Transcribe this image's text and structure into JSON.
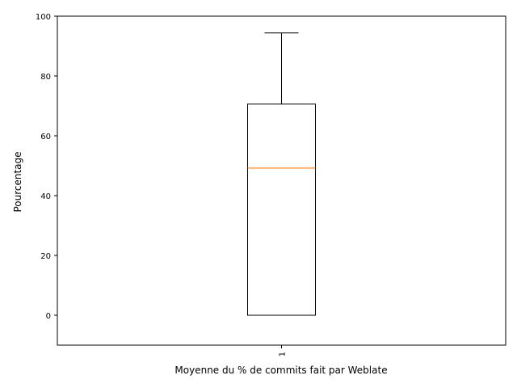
{
  "chart_data": {
    "type": "boxplot",
    "title": "",
    "xlabel": "Moyenne du % de commits fait par Weblate",
    "ylabel": "Pourcentage",
    "ylim": [
      -10,
      100
    ],
    "yticks": [
      0,
      20,
      40,
      60,
      80,
      100
    ],
    "categories": [
      "1"
    ],
    "boxes": [
      {
        "label": "1",
        "whisker_low": 0,
        "q1": 0,
        "median": 49.2,
        "q3": 70.6,
        "whisker_high": 94.4
      }
    ],
    "colors": {
      "median": "#ff7f0e",
      "box": "#000000",
      "axes": "#000000"
    }
  }
}
